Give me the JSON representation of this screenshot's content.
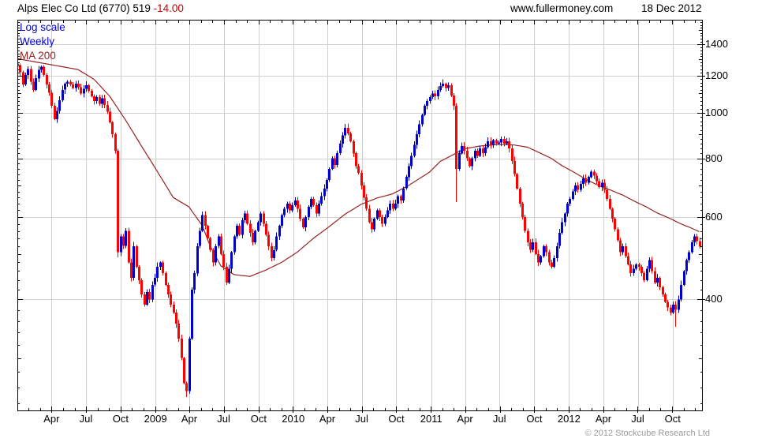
{
  "header": {
    "title": "Alps Elec Co Ltd (6770) 519",
    "change": " -14.00",
    "website": "www.fullermoney.com",
    "date": "18 Dec 2012"
  },
  "legend": {
    "items": [
      {
        "label": "Log scale",
        "color": "#0000dd"
      },
      {
        "label": "Weekly",
        "color": "#0000dd"
      },
      {
        "label": "MA 200",
        "color": "#992222"
      }
    ]
  },
  "footer": {
    "copyright": "© 2012 Stockcube Research Ltd"
  },
  "chart_data": {
    "type": "candlestick",
    "title": "Alps Elec Co Ltd (6770)",
    "timeframe": "Weekly",
    "scale": "log",
    "last_price": 519,
    "change": -14.0,
    "start": "Jan 2008",
    "end": "18 Dec 2012",
    "weeks": 259,
    "ylim": [
      232,
      1580
    ],
    "y_ticks": [
      400,
      600,
      800,
      1000,
      1200,
      1400
    ],
    "x_ticks": [
      {
        "label": "Apr",
        "week": 13.0
      },
      {
        "label": "Jul",
        "week": 26.0
      },
      {
        "label": "Oct",
        "week": 39.1
      },
      {
        "label": "2009",
        "week": 52.3
      },
      {
        "label": "Apr",
        "week": 65.1
      },
      {
        "label": "Jul",
        "week": 78.1
      },
      {
        "label": "Oct",
        "week": 91.3
      },
      {
        "label": "2010",
        "week": 104.4
      },
      {
        "label": "Apr",
        "week": 117.3
      },
      {
        "label": "Jul",
        "week": 130.3
      },
      {
        "label": "Oct",
        "week": 143.4
      },
      {
        "label": "2011",
        "week": 156.6
      },
      {
        "label": "Apr",
        "week": 169.4
      },
      {
        "label": "Jul",
        "week": 182.4
      },
      {
        "label": "Oct",
        "week": 195.6
      },
      {
        "label": "2012",
        "week": 208.7
      },
      {
        "label": "Apr",
        "week": 221.7
      },
      {
        "label": "Jul",
        "week": 234.7
      },
      {
        "label": "Oct",
        "week": 247.9
      }
    ],
    "first_open": 1275,
    "closes": [
      1265,
      1220,
      1150,
      1205,
      1240,
      1165,
      1120,
      1185,
      1235,
      1255,
      1205,
      1150,
      1105,
      1035,
      970,
      1010,
      1065,
      1120,
      1155,
      1165,
      1150,
      1130,
      1155,
      1135,
      1100,
      1125,
      1145,
      1115,
      1085,
      1060,
      1080,
      1045,
      1075,
      1040,
      1005,
      955,
      900,
      830,
      505,
      545,
      520,
      560,
      480,
      445,
      520,
      470,
      440,
      410,
      390,
      415,
      400,
      430,
      445,
      470,
      480,
      455,
      430,
      410,
      390,
      375,
      355,
      330,
      300,
      265,
      255,
      330,
      420,
      455,
      520,
      560,
      605,
      575,
      540,
      510,
      480,
      520,
      545,
      500,
      470,
      435,
      465,
      505,
      545,
      575,
      550,
      590,
      610,
      580,
      555,
      530,
      560,
      585,
      610,
      580,
      550,
      520,
      490,
      510,
      545,
      575,
      605,
      625,
      640,
      620,
      635,
      650,
      625,
      595,
      570,
      600,
      630,
      655,
      635,
      610,
      640,
      665,
      690,
      720,
      760,
      800,
      775,
      820,
      860,
      895,
      930,
      905,
      870,
      820,
      770,
      745,
      700,
      660,
      625,
      585,
      565,
      595,
      620,
      600,
      580,
      600,
      620,
      640,
      625,
      640,
      665,
      650,
      690,
      730,
      770,
      810,
      855,
      900,
      945,
      990,
      1035,
      1060,
      1080,
      1100,
      1085,
      1120,
      1140,
      1155,
      1130,
      1145,
      1090,
      1035,
      760,
      820,
      850,
      830,
      800,
      770,
      800,
      830,
      810,
      840,
      820,
      845,
      870,
      855,
      875,
      860,
      865,
      880,
      860,
      870,
      840,
      790,
      740,
      690,
      640,
      600,
      560,
      530,
      510,
      530,
      500,
      480,
      495,
      520,
      505,
      480,
      470,
      490,
      520,
      555,
      585,
      610,
      640,
      655,
      680,
      700,
      685,
      705,
      725,
      710,
      730,
      750,
      735,
      715,
      695,
      710,
      685,
      655,
      625,
      595,
      565,
      535,
      505,
      520,
      495,
      475,
      455,
      465,
      475,
      470,
      455,
      440,
      465,
      485,
      460,
      435,
      445,
      425,
      410,
      395,
      385,
      375,
      390,
      380,
      400,
      430,
      460,
      485,
      505,
      530,
      545,
      533,
      519
    ],
    "wick_overrides": {
      "38": {
        "low": 492
      },
      "64": {
        "low": 248
      },
      "163": {
        "high": 1162
      },
      "166": {
        "low": 645
      },
      "249": {
        "low": 350
      }
    },
    "ma200_keyframes": [
      [
        0,
        1305
      ],
      [
        11,
        1272
      ],
      [
        23,
        1237
      ],
      [
        29,
        1180
      ],
      [
        35,
        1085
      ],
      [
        41,
        965
      ],
      [
        47,
        850
      ],
      [
        53,
        750
      ],
      [
        59,
        660
      ],
      [
        65,
        630
      ],
      [
        70,
        575
      ],
      [
        73,
        520
      ],
      [
        77,
        472
      ],
      [
        82,
        452
      ],
      [
        88,
        448
      ],
      [
        94,
        462
      ],
      [
        100,
        480
      ],
      [
        106,
        505
      ],
      [
        112,
        540
      ],
      [
        118,
        572
      ],
      [
        124,
        608
      ],
      [
        130,
        638
      ],
      [
        136,
        658
      ],
      [
        142,
        672
      ],
      [
        148,
        700
      ],
      [
        156,
        748
      ],
      [
        160,
        788
      ],
      [
        165,
        815
      ],
      [
        169,
        838
      ],
      [
        175,
        850
      ],
      [
        182,
        856
      ],
      [
        188,
        854
      ],
      [
        193,
        845
      ],
      [
        197,
        825
      ],
      [
        202,
        800
      ],
      [
        206,
        772
      ],
      [
        211,
        745
      ],
      [
        215,
        722
      ],
      [
        220,
        700
      ],
      [
        224,
        686
      ],
      [
        229,
        668
      ],
      [
        233,
        650
      ],
      [
        238,
        630
      ],
      [
        242,
        612
      ],
      [
        247,
        595
      ],
      [
        251,
        580
      ],
      [
        255,
        568
      ],
      [
        258,
        558
      ]
    ],
    "colors": {
      "up": "#0000cc",
      "down": "#ff0000",
      "ma": "#992222",
      "grid": "#d0d0d0",
      "axis": "#000000"
    },
    "legend_position": "top-left",
    "grid": true
  }
}
